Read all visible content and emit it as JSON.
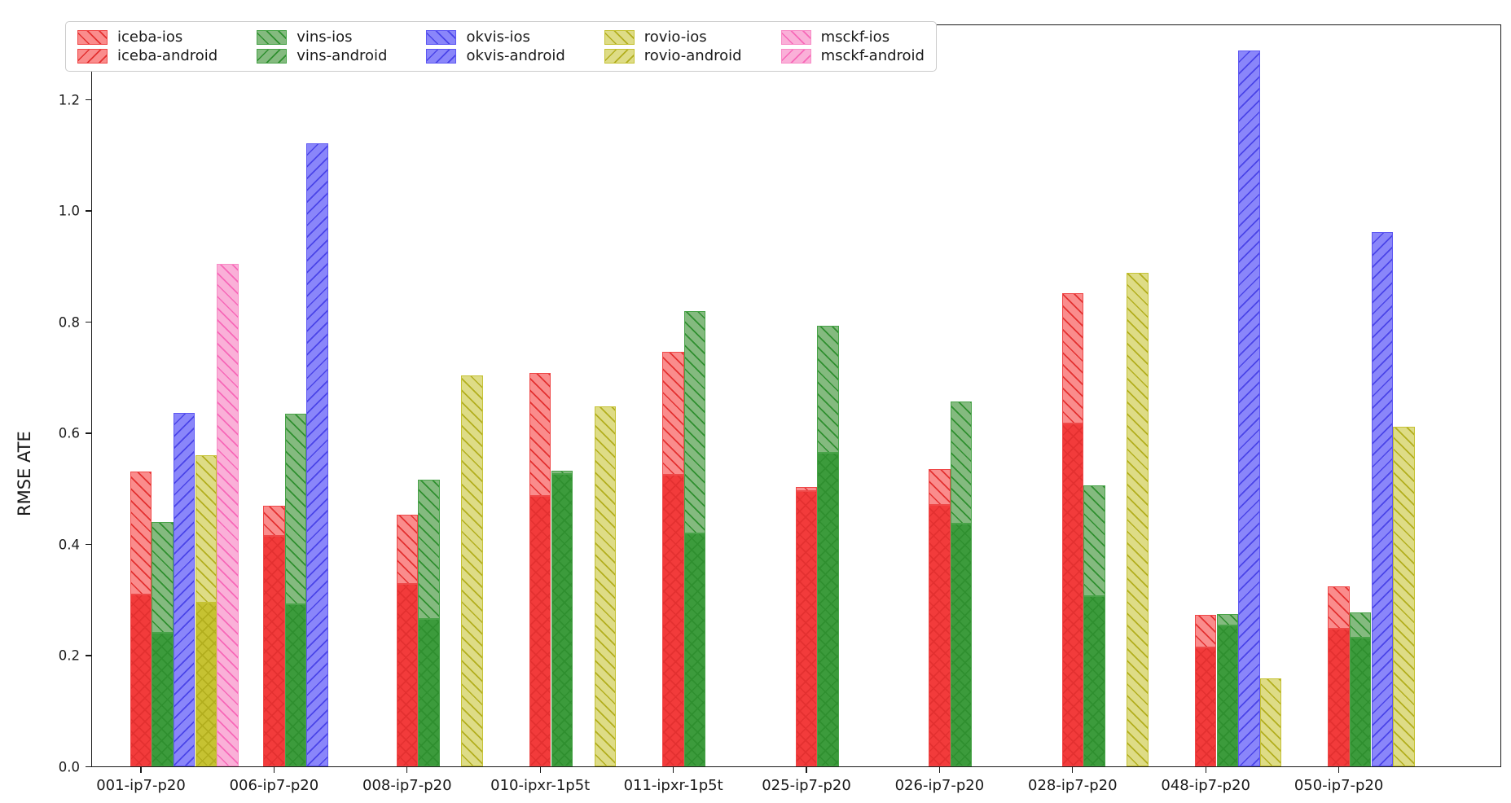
{
  "figure": {
    "background": "#ffffff"
  },
  "axes": {
    "ylabel": "RMSE ATE",
    "yticks": [
      {
        "label": "0.0",
        "value": 0.0
      },
      {
        "label": "0.2",
        "value": 0.2
      },
      {
        "label": "0.4",
        "value": 0.4
      },
      {
        "label": "0.6",
        "value": 0.6
      },
      {
        "label": "0.8",
        "value": 0.8
      },
      {
        "label": "1.0",
        "value": 1.0
      },
      {
        "label": "1.2",
        "value": 1.2
      }
    ]
  },
  "legend": {
    "entries": [
      {
        "label": "iceba-ios",
        "family": "iceba",
        "hatch": "/"
      },
      {
        "label": "iceba-android",
        "family": "iceba",
        "hatch": "\\"
      },
      {
        "label": "vins-ios",
        "family": "vins",
        "hatch": "/"
      },
      {
        "label": "vins-android",
        "family": "vins",
        "hatch": "\\"
      },
      {
        "label": "okvis-ios",
        "family": "okvis",
        "hatch": "/"
      },
      {
        "label": "okvis-android",
        "family": "okvis",
        "hatch": "\\"
      },
      {
        "label": "rovio-ios",
        "family": "rovio",
        "hatch": "/"
      },
      {
        "label": "rovio-android",
        "family": "rovio",
        "hatch": "\\"
      },
      {
        "label": "msckf-ios",
        "family": "msckf",
        "hatch": "/"
      },
      {
        "label": "msckf-android",
        "family": "msckf",
        "hatch": "\\"
      }
    ]
  },
  "chart_data": {
    "type": "bar",
    "title": "",
    "xlabel": "",
    "ylabel": "RMSE ATE",
    "ylim": [
      0,
      1.336
    ],
    "grid": false,
    "legend_position": "upper-left",
    "categories": [
      "001-ip7-p20",
      "006-ip7-p20",
      "008-ip7-p20",
      "010-ipxr-1p5t",
      "011-ipxr-1p5t",
      "025-ip7-p20",
      "026-ip7-p20",
      "028-ip7-p20",
      "048-ip7-p20",
      "050-ip7-p20"
    ],
    "algorithm_order": [
      "iceba",
      "vins",
      "okvis",
      "rovio",
      "msckf"
    ],
    "series": [
      {
        "name": "iceba-ios",
        "family": "iceba",
        "platform": "ios",
        "values": [
          0.531,
          0.47,
          0.454,
          0.708,
          0.747,
          0.504,
          0.535,
          0.852,
          0.273,
          0.325
        ]
      },
      {
        "name": "iceba-android",
        "family": "iceba",
        "platform": "android",
        "values": [
          0.31,
          0.415,
          0.329,
          0.487,
          0.526,
          0.496,
          0.471,
          0.617,
          0.215,
          0.249
        ]
      },
      {
        "name": "vins-ios",
        "family": "vins",
        "platform": "ios",
        "values": [
          0.44,
          0.635,
          0.516,
          0.533,
          0.82,
          0.793,
          0.657,
          0.506,
          0.274,
          0.277
        ]
      },
      {
        "name": "vins-android",
        "family": "vins",
        "platform": "android",
        "values": [
          0.241,
          0.292,
          0.266,
          0.527,
          0.42,
          0.565,
          0.438,
          0.307,
          0.254,
          0.232
        ]
      },
      {
        "name": "okvis-ios",
        "family": "okvis",
        "platform": "ios",
        "values": [
          null,
          null,
          null,
          null,
          null,
          null,
          null,
          null,
          null,
          null
        ]
      },
      {
        "name": "okvis-android",
        "family": "okvis",
        "platform": "android",
        "values": [
          0.636,
          1.122,
          null,
          null,
          null,
          null,
          null,
          null,
          1.289,
          0.962
        ]
      },
      {
        "name": "rovio-ios",
        "family": "rovio",
        "platform": "ios",
        "values": [
          0.56,
          null,
          0.704,
          0.648,
          null,
          null,
          null,
          0.888,
          0.159,
          0.611
        ]
      },
      {
        "name": "rovio-android",
        "family": "rovio",
        "platform": "android",
        "values": [
          0.295,
          null,
          null,
          null,
          null,
          null,
          null,
          null,
          null,
          null
        ]
      },
      {
        "name": "msckf-ios",
        "family": "msckf",
        "platform": "ios",
        "values": [
          0.905,
          null,
          null,
          null,
          null,
          null,
          null,
          null,
          null,
          null
        ]
      },
      {
        "name": "msckf-android",
        "family": "msckf",
        "platform": "android",
        "values": [
          null,
          null,
          null,
          null,
          null,
          null,
          null,
          null,
          null,
          null
        ]
      }
    ],
    "colors": {
      "iceba": {
        "light": "#fa8c8c",
        "dark": "#f23b3b",
        "hatch": "#e33030",
        "edge": "#ef4848"
      },
      "vins": {
        "light": "#84ba7f",
        "dark": "#3c9b3c",
        "hatch": "#2f8f2f",
        "edge": "#49a349"
      },
      "okvis": {
        "light": "#8a86fa",
        "dark": "#5a55f0",
        "hatch": "#4a44e8",
        "edge": "#5d57f2"
      },
      "rovio": {
        "light": "#dedc86",
        "dark": "#c6c232",
        "hatch": "#b2ae1e",
        "edge": "#c5c235"
      },
      "msckf": {
        "light": "#fab0d8",
        "dark": "#f77bbf",
        "hatch": "#f768b8",
        "edge": "#f88cc6"
      }
    }
  }
}
